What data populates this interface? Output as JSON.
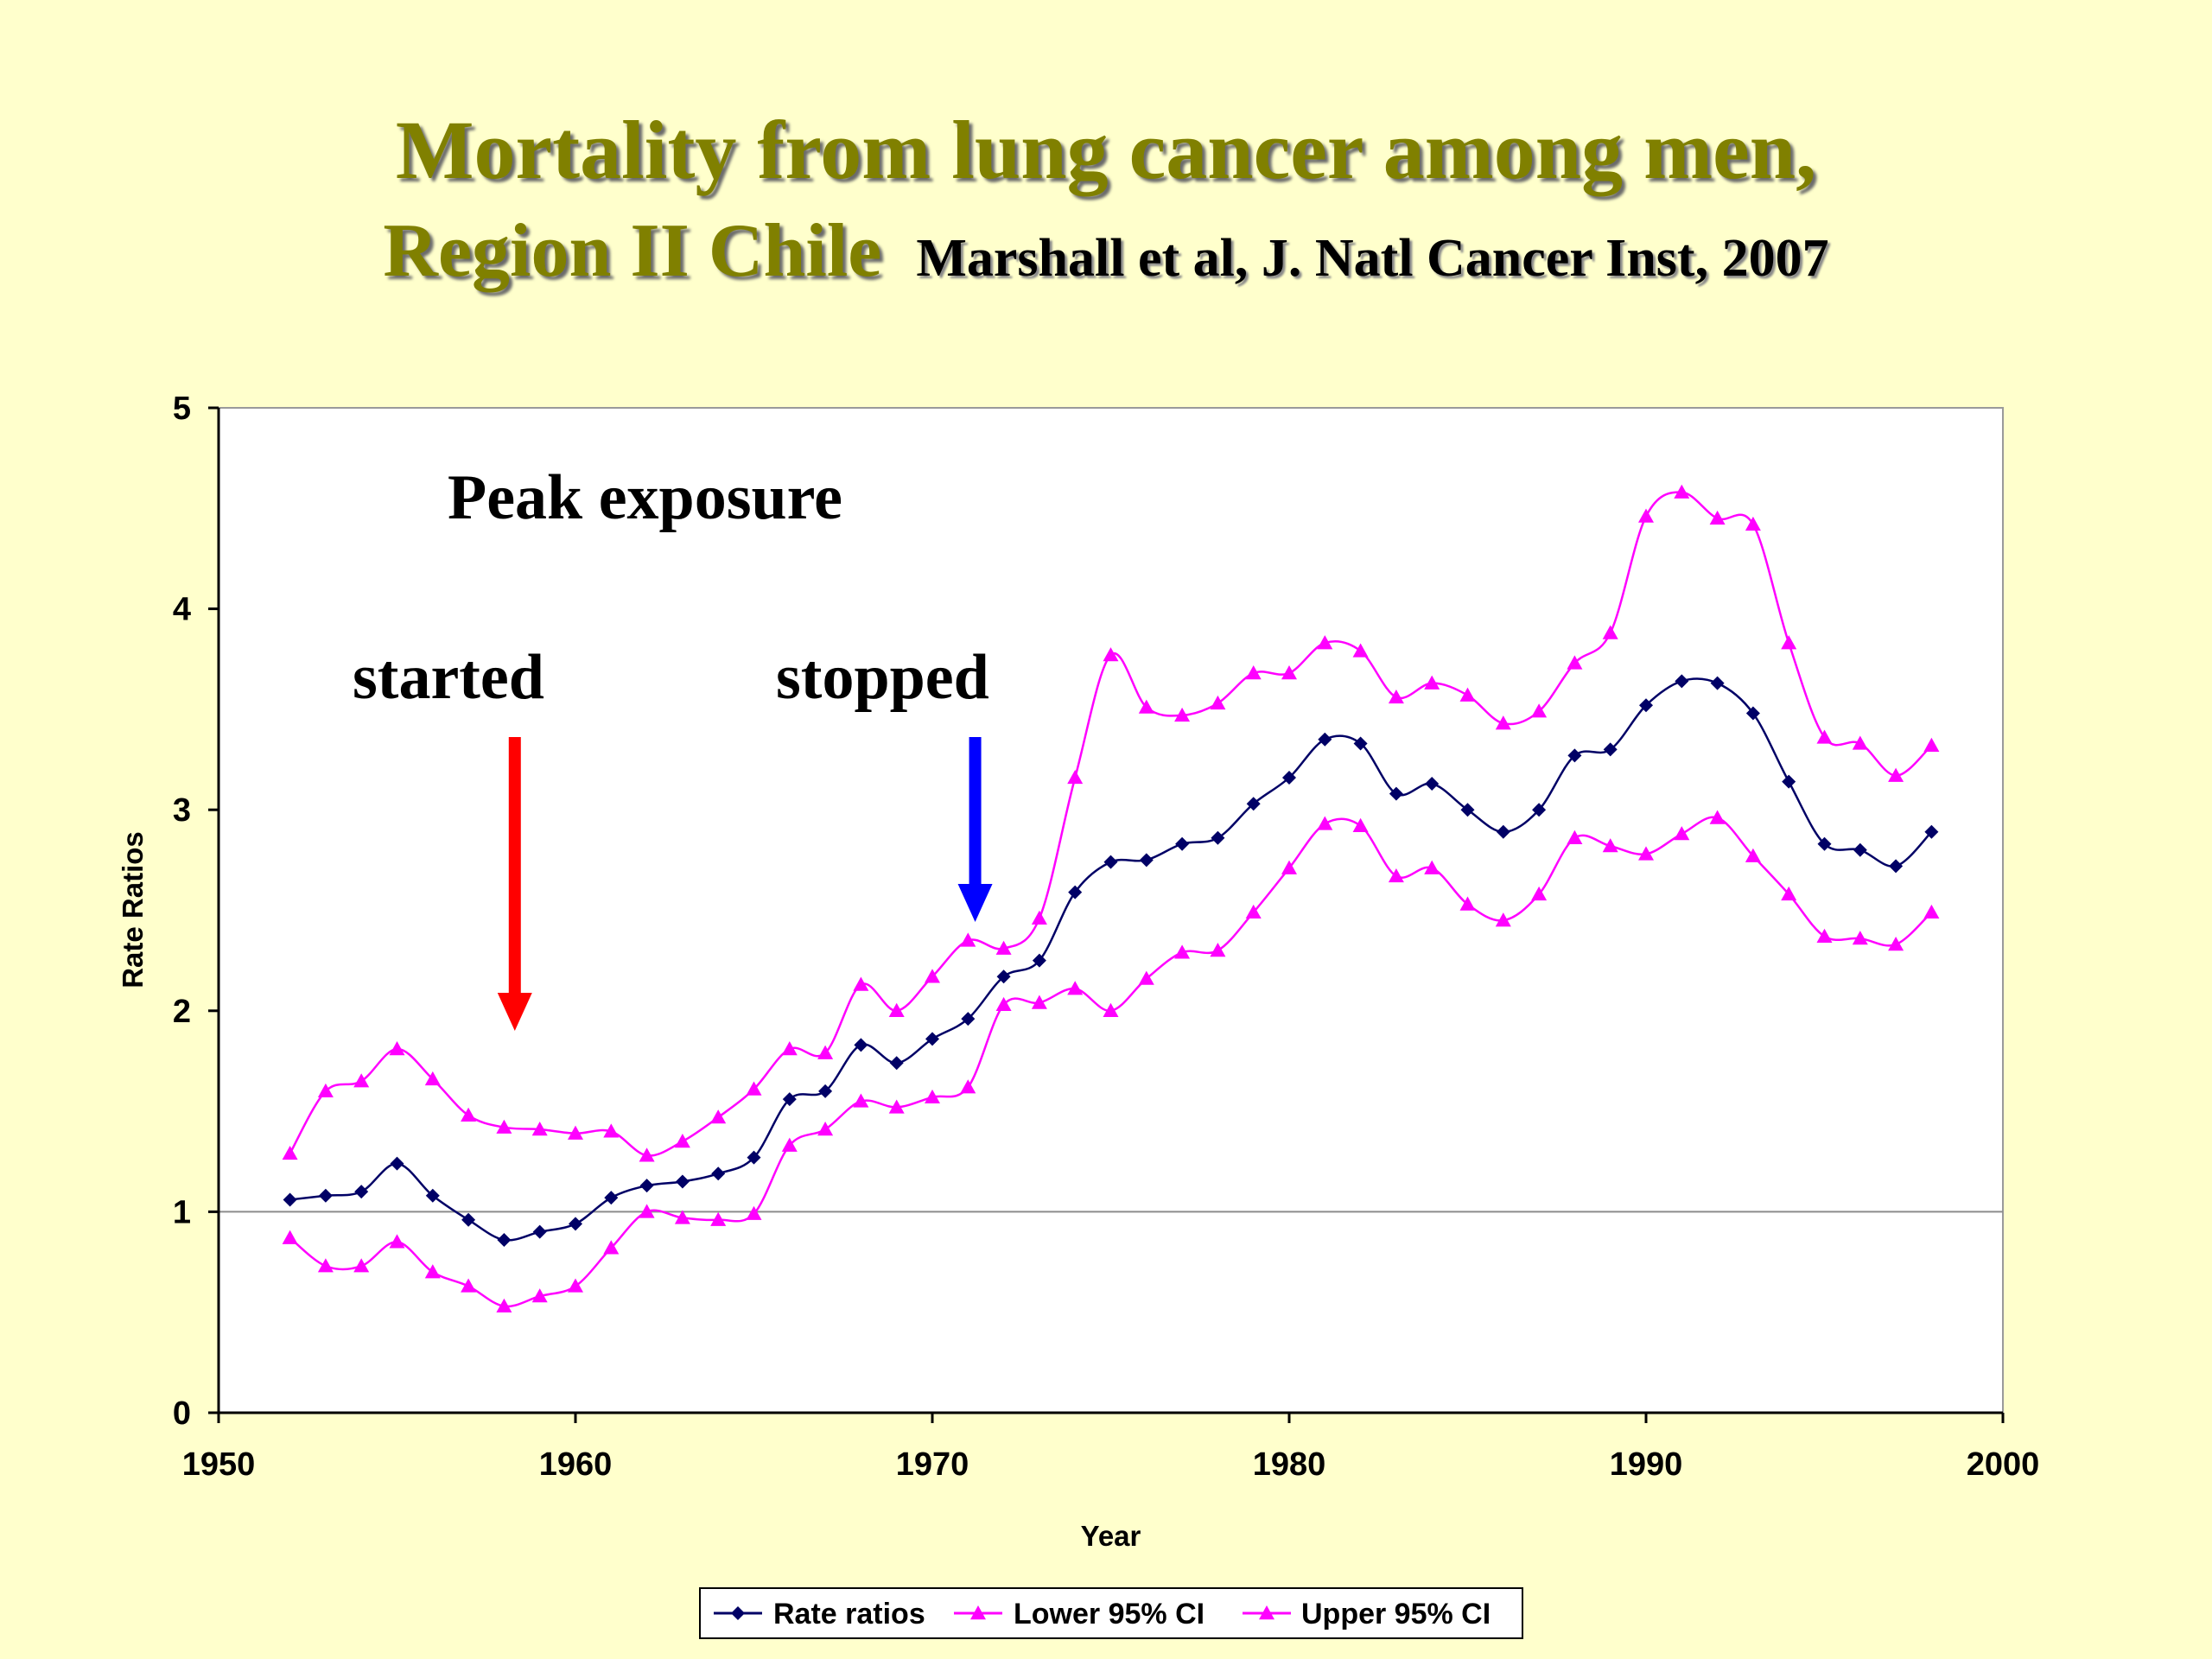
{
  "title": {
    "line1": "Mortality from lung cancer among men,",
    "line2": "Region II Chile",
    "citation": "Marshall et al, J. Natl Cancer Inst, 2007"
  },
  "annotations": {
    "heading": "Peak exposure",
    "started": "started",
    "stopped": "stopped",
    "started_year": 1958.3,
    "stopped_year": 1971.2
  },
  "colors": {
    "background": "#ffffcc",
    "title": "#808000",
    "rate": "#000066",
    "ci": "#ff00ff",
    "started_arrow": "#ff0000",
    "stopped_arrow": "#0000ff"
  },
  "chart_data": {
    "type": "line",
    "xlabel": "Year",
    "ylabel": "Rate Ratios",
    "xlim": [
      1950,
      2000
    ],
    "ylim": [
      0,
      5
    ],
    "xticks": [
      "1950",
      "1960",
      "1970",
      "1980",
      "1990",
      "2000"
    ],
    "yticks": [
      "0",
      "1",
      "2",
      "3",
      "4",
      "5"
    ],
    "reference_line": 1,
    "legend_position": "bottom",
    "x": [
      1952,
      1953,
      1954,
      1955,
      1956,
      1957,
      1958,
      1959,
      1960,
      1961,
      1962,
      1963,
      1964,
      1965,
      1966,
      1967,
      1968,
      1969,
      1970,
      1971,
      1972,
      1973,
      1974,
      1975,
      1976,
      1977,
      1978,
      1979,
      1980,
      1981,
      1982,
      1983,
      1984,
      1985,
      1986,
      1987,
      1988,
      1989,
      1990,
      1991,
      1992,
      1993,
      1994,
      1995,
      1996,
      1997,
      1998
    ],
    "series": [
      {
        "name": "Rate ratios",
        "marker": "diamond",
        "values": [
          1.06,
          1.08,
          1.1,
          1.24,
          1.08,
          0.96,
          0.86,
          0.9,
          0.94,
          1.07,
          1.13,
          1.15,
          1.19,
          1.27,
          1.56,
          1.6,
          1.83,
          1.74,
          1.86,
          1.96,
          2.17,
          2.25,
          2.59,
          2.74,
          2.75,
          2.83,
          2.86,
          3.03,
          3.16,
          3.35,
          3.33,
          3.08,
          3.13,
          3.0,
          2.89,
          3.0,
          3.27,
          3.3,
          3.52,
          3.64,
          3.63,
          3.48,
          3.14,
          2.83,
          2.8,
          2.72,
          2.89
        ]
      },
      {
        "name": "Lower 95% CI",
        "marker": "triangle",
        "values": [
          0.87,
          0.73,
          0.73,
          0.85,
          0.7,
          0.63,
          0.53,
          0.58,
          0.63,
          0.82,
          1.0,
          0.97,
          0.96,
          0.99,
          1.33,
          1.41,
          1.55,
          1.52,
          1.57,
          1.62,
          2.03,
          2.04,
          2.11,
          2.0,
          2.16,
          2.29,
          2.3,
          2.49,
          2.71,
          2.93,
          2.92,
          2.67,
          2.71,
          2.53,
          2.45,
          2.58,
          2.86,
          2.82,
          2.78,
          2.88,
          2.96,
          2.77,
          2.58,
          2.37,
          2.36,
          2.33,
          2.49
        ]
      },
      {
        "name": "Upper 95% CI",
        "marker": "triangle",
        "values": [
          1.29,
          1.6,
          1.65,
          1.81,
          1.66,
          1.48,
          1.42,
          1.41,
          1.39,
          1.4,
          1.28,
          1.35,
          1.47,
          1.61,
          1.81,
          1.79,
          2.13,
          2.0,
          2.17,
          2.35,
          2.31,
          2.46,
          3.16,
          3.77,
          3.51,
          3.47,
          3.53,
          3.68,
          3.68,
          3.83,
          3.79,
          3.56,
          3.63,
          3.57,
          3.43,
          3.49,
          3.73,
          3.88,
          4.46,
          4.58,
          4.45,
          4.42,
          3.83,
          3.36,
          3.33,
          3.17,
          3.32
        ]
      }
    ]
  }
}
